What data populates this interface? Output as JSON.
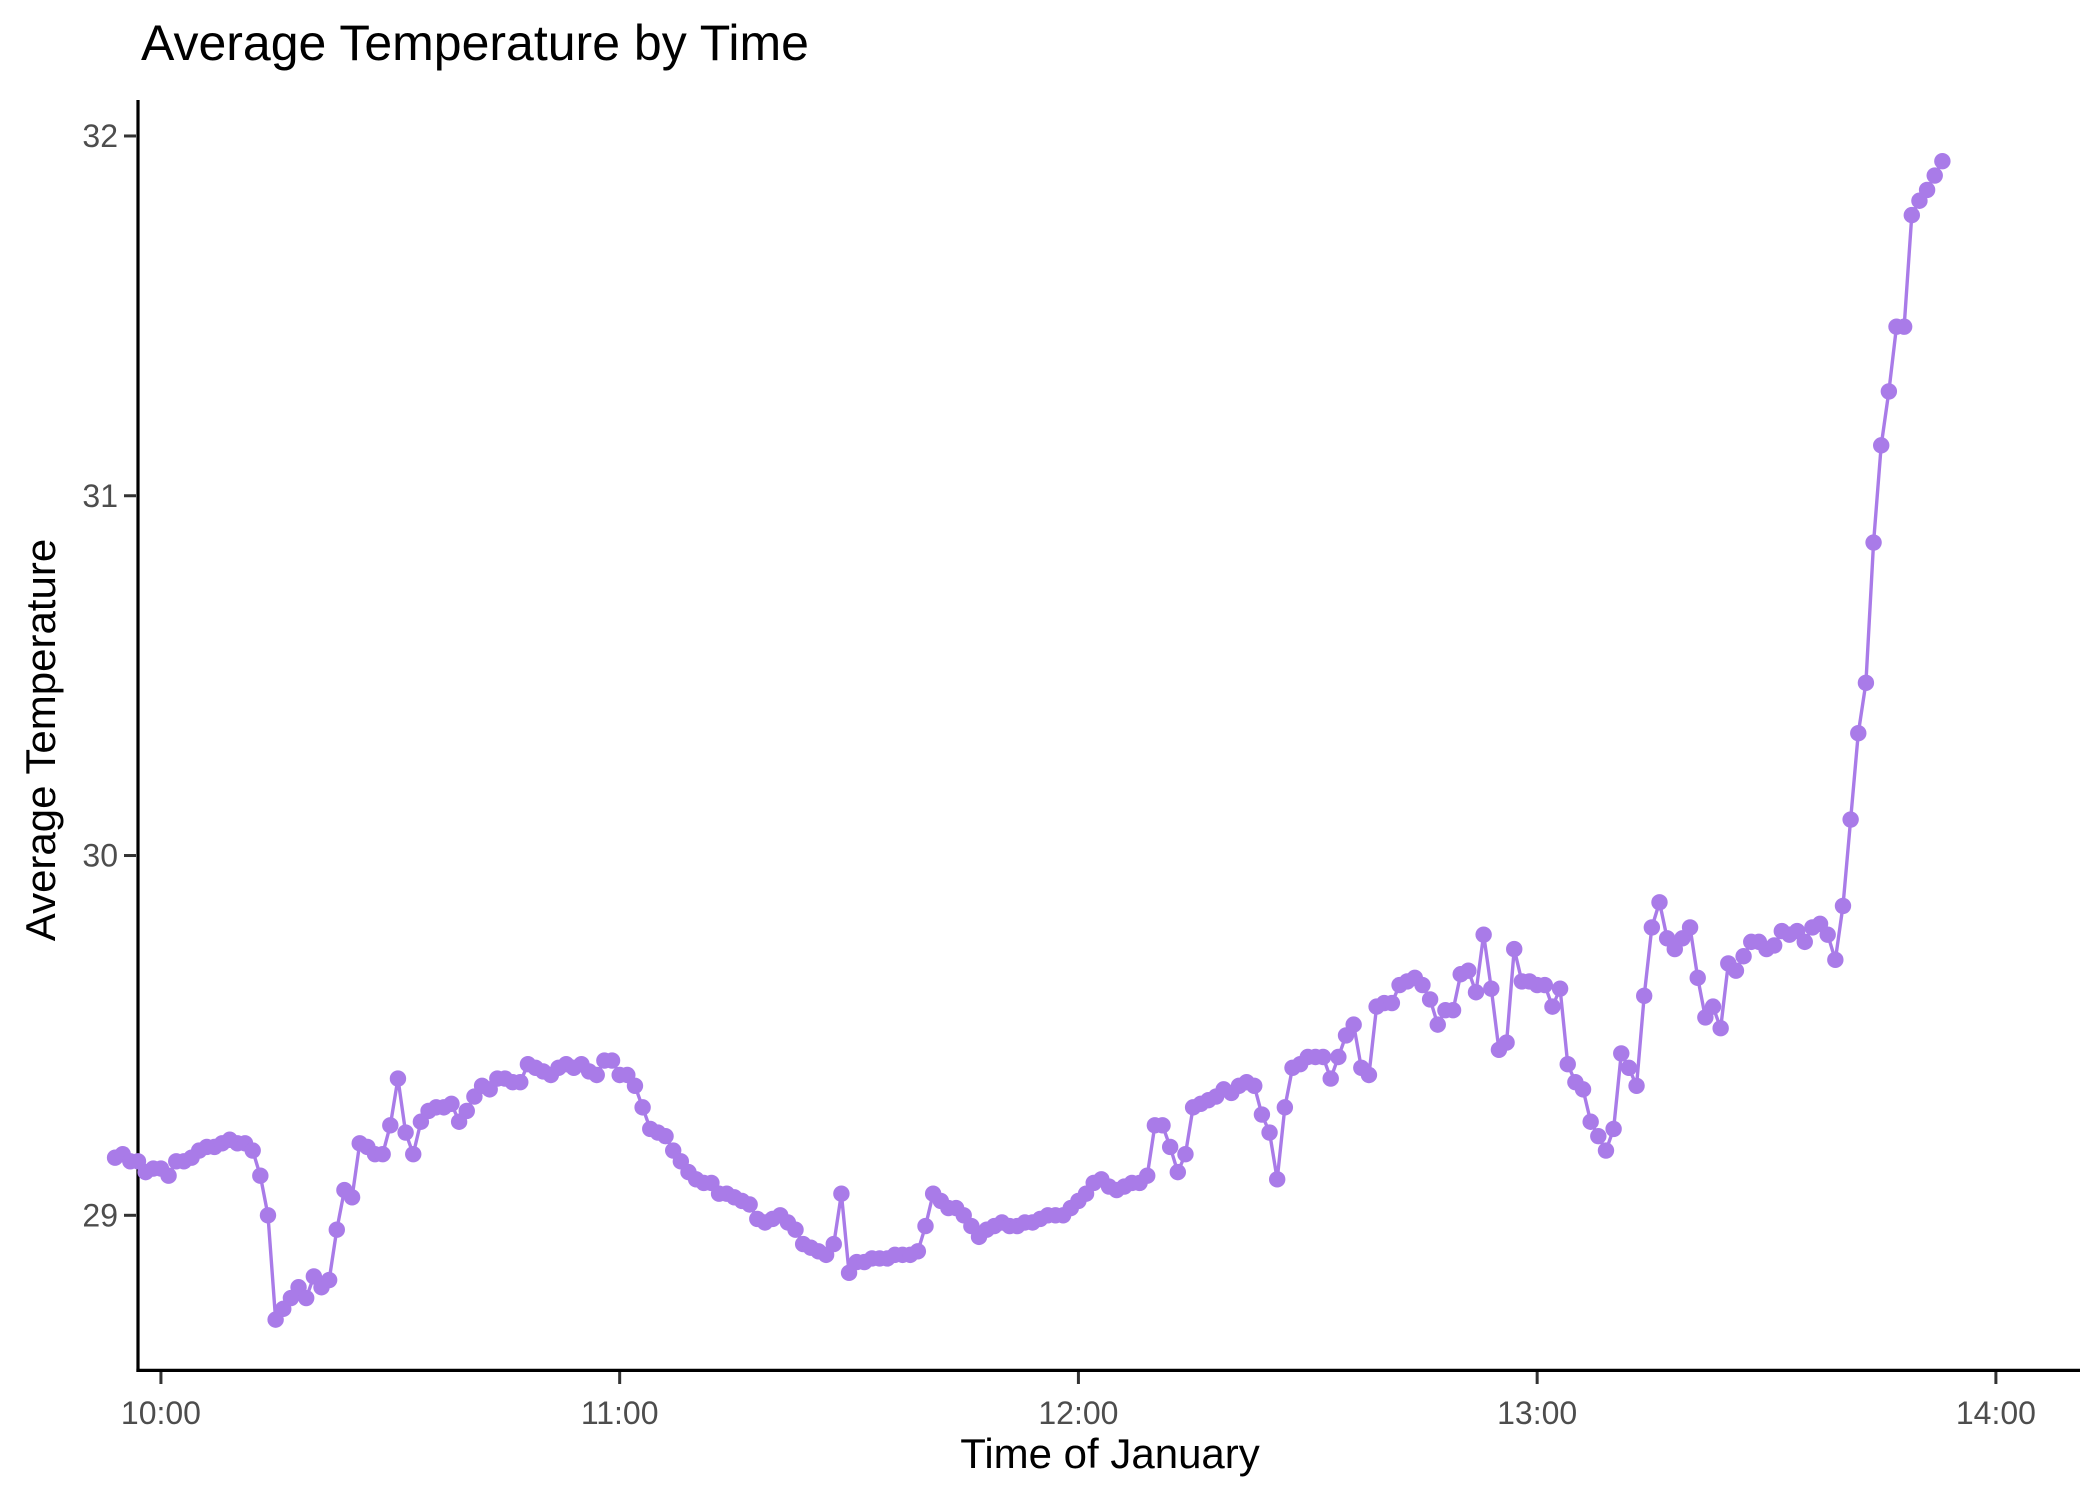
{
  "chart_data": {
    "type": "line",
    "title": "Average Temperature by Time",
    "xlabel": "Time of January",
    "ylabel": "Average Temperature",
    "color": "#a97be8",
    "grid": false,
    "xlim_minutes": [
      597,
      851
    ],
    "ylim": [
      28.57,
      32.1
    ],
    "x_ticks": [
      {
        "value": 600,
        "label": "10:00"
      },
      {
        "value": 660,
        "label": "11:00"
      },
      {
        "value": 720,
        "label": "12:00"
      },
      {
        "value": 780,
        "label": "13:00"
      },
      {
        "value": 840,
        "label": "14:00"
      }
    ],
    "y_ticks": [
      {
        "value": 29,
        "label": "29"
      },
      {
        "value": 30,
        "label": "30"
      },
      {
        "value": 31,
        "label": "31"
      },
      {
        "value": 32,
        "label": "32"
      }
    ],
    "x_start_minute": 594,
    "x_step_minutes": 1,
    "values": [
      29.16,
      29.17,
      29.15,
      29.15,
      29.12,
      29.13,
      29.13,
      29.11,
      29.15,
      29.15,
      29.16,
      29.18,
      29.19,
      29.19,
      29.2,
      29.21,
      29.2,
      29.2,
      29.18,
      29.11,
      29.0,
      28.71,
      28.74,
      28.77,
      28.8,
      28.77,
      28.83,
      28.8,
      28.82,
      28.96,
      29.07,
      29.05,
      29.2,
      29.19,
      29.17,
      29.17,
      29.25,
      29.38,
      29.23,
      29.17,
      29.26,
      29.29,
      29.3,
      29.3,
      29.31,
      29.26,
      29.29,
      29.33,
      29.36,
      29.35,
      29.38,
      29.38,
      29.37,
      29.37,
      29.42,
      29.41,
      29.4,
      29.39,
      29.41,
      29.42,
      29.41,
      29.42,
      29.4,
      29.39,
      29.43,
      29.43,
      29.39,
      29.39,
      29.36,
      29.3,
      29.24,
      29.23,
      29.22,
      29.18,
      29.15,
      29.12,
      29.1,
      29.09,
      29.09,
      29.06,
      29.06,
      29.05,
      29.04,
      29.03,
      28.99,
      28.98,
      28.99,
      29.0,
      28.98,
      28.96,
      28.92,
      28.91,
      28.9,
      28.89,
      28.92,
      29.06,
      28.84,
      28.87,
      28.87,
      28.88,
      28.88,
      28.88,
      28.89,
      28.89,
      28.89,
      28.9,
      28.97,
      29.06,
      29.04,
      29.02,
      29.02,
      29.0,
      28.97,
      28.94,
      28.96,
      28.97,
      28.98,
      28.97,
      28.97,
      28.98,
      28.98,
      28.99,
      29.0,
      29.0,
      29.0,
      29.02,
      29.04,
      29.06,
      29.09,
      29.1,
      29.08,
      29.07,
      29.08,
      29.09,
      29.09,
      29.11,
      29.25,
      29.25,
      29.19,
      29.12,
      29.17,
      29.3,
      29.31,
      29.32,
      29.33,
      29.35,
      29.34,
      29.36,
      29.37,
      29.36,
      29.28,
      29.23,
      29.1,
      29.3,
      29.41,
      29.42,
      29.44,
      29.44,
      29.44,
      29.38,
      29.44,
      29.5,
      29.53,
      29.41,
      29.39,
      29.58,
      29.59,
      29.59,
      29.64,
      29.65,
      29.66,
      29.64,
      29.6,
      29.53,
      29.57,
      29.57,
      29.67,
      29.68,
      29.62,
      29.78,
      29.63,
      29.46,
      29.48,
      29.74,
      29.65,
      29.65,
      29.64,
      29.64,
      29.58,
      29.63,
      29.42,
      29.37,
      29.35,
      29.26,
      29.22,
      29.18,
      29.24,
      29.45,
      29.41,
      29.36,
      29.61,
      29.8,
      29.87,
      29.77,
      29.74,
      29.77,
      29.8,
      29.66,
      29.55,
      29.58,
      29.52,
      29.7,
      29.68,
      29.72,
      29.76,
      29.76,
      29.74,
      29.75,
      29.79,
      29.78,
      29.79,
      29.76,
      29.8,
      29.81,
      29.78,
      29.71,
      29.86,
      30.1,
      30.34,
      30.48,
      30.87,
      31.14,
      31.29,
      31.47,
      31.47,
      31.78,
      31.82,
      31.85,
      31.89,
      31.93
    ]
  }
}
